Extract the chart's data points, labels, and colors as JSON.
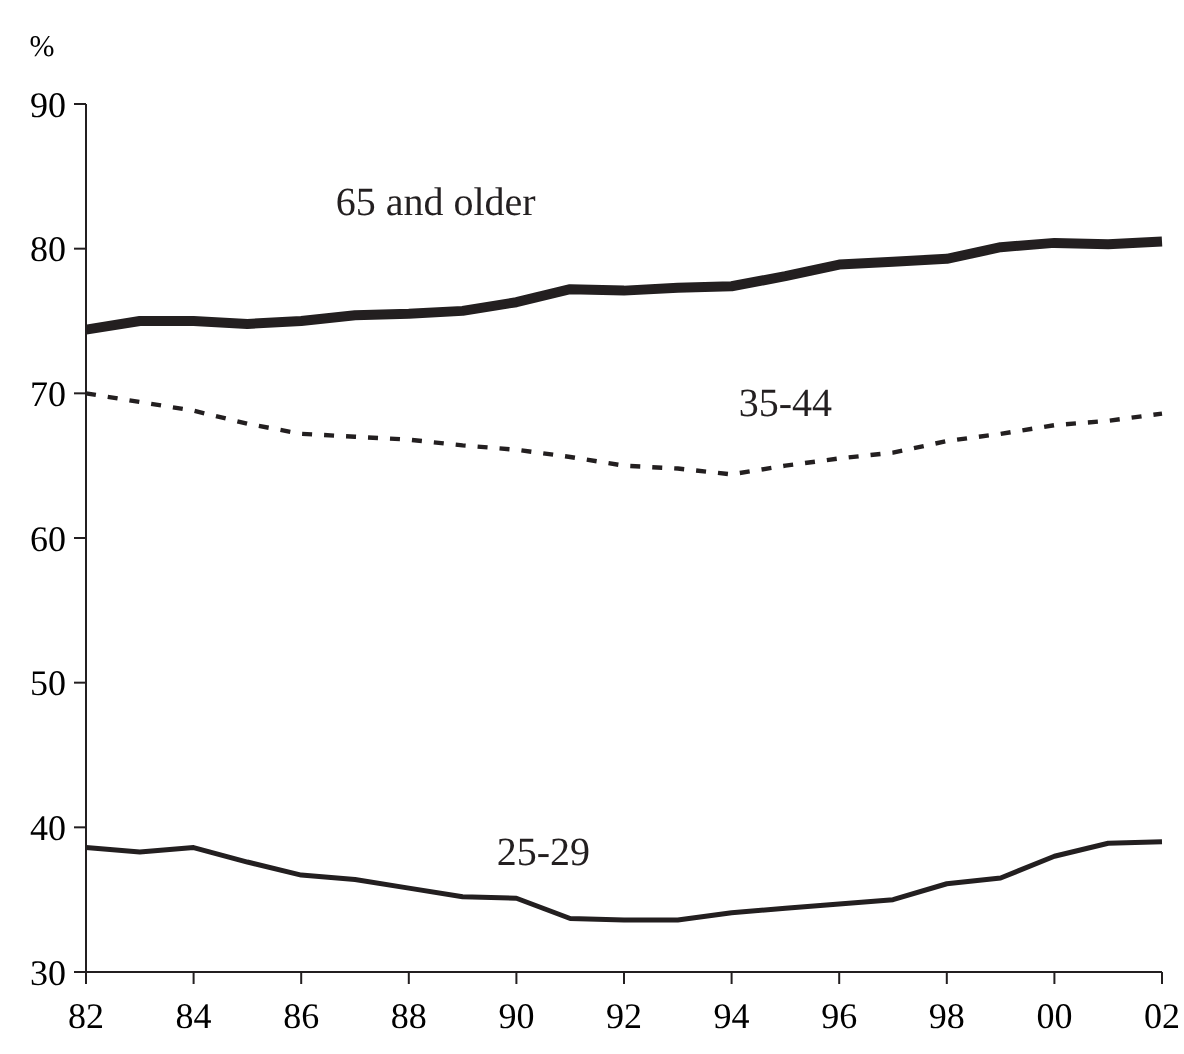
{
  "chart_data": {
    "type": "line",
    "ylabel": "%",
    "x": [
      1982,
      1983,
      1984,
      1985,
      1986,
      1987,
      1988,
      1989,
      1990,
      1991,
      1992,
      1993,
      1994,
      1995,
      1996,
      1997,
      1998,
      1999,
      2000,
      2001,
      2002
    ],
    "xlim": [
      1982,
      2002
    ],
    "xticks": [
      {
        "value": 1982,
        "label": "82"
      },
      {
        "value": 1984,
        "label": "84"
      },
      {
        "value": 1986,
        "label": "86"
      },
      {
        "value": 1988,
        "label": "88"
      },
      {
        "value": 1990,
        "label": "90"
      },
      {
        "value": 1992,
        "label": "92"
      },
      {
        "value": 1994,
        "label": "94"
      },
      {
        "value": 1996,
        "label": "96"
      },
      {
        "value": 1998,
        "label": "98"
      },
      {
        "value": 2000,
        "label": "00"
      },
      {
        "value": 2002,
        "label": "02"
      }
    ],
    "ylim": [
      30,
      90
    ],
    "yticks": [
      30,
      40,
      50,
      60,
      70,
      80,
      90
    ],
    "grid": false,
    "marker": "none",
    "series": [
      {
        "name": "65 and older",
        "color": "#231f20",
        "line_style": "solid",
        "values": [
          74.4,
          75.0,
          75.0,
          74.8,
          75.0,
          75.4,
          75.5,
          75.7,
          76.3,
          77.2,
          77.1,
          77.3,
          77.4,
          78.1,
          78.9,
          79.1,
          79.3,
          80.1,
          80.4,
          80.3,
          80.5
        ]
      },
      {
        "name": "35-44",
        "color": "#231f20",
        "line_style": "dashed",
        "values": [
          70.0,
          69.4,
          68.8,
          67.9,
          67.2,
          67.0,
          66.8,
          66.4,
          66.1,
          65.6,
          65.0,
          64.8,
          64.4,
          65.0,
          65.5,
          65.9,
          66.7,
          67.2,
          67.8,
          68.1,
          68.6
        ]
      },
      {
        "name": "25-29",
        "color": "#231f20",
        "line_style": "solid",
        "values": [
          38.6,
          38.3,
          38.6,
          37.6,
          36.7,
          36.4,
          35.8,
          35.2,
          35.1,
          33.7,
          33.6,
          33.6,
          34.1,
          34.4,
          34.7,
          35.0,
          36.1,
          36.5,
          38.0,
          38.9,
          39.0
        ]
      }
    ]
  }
}
